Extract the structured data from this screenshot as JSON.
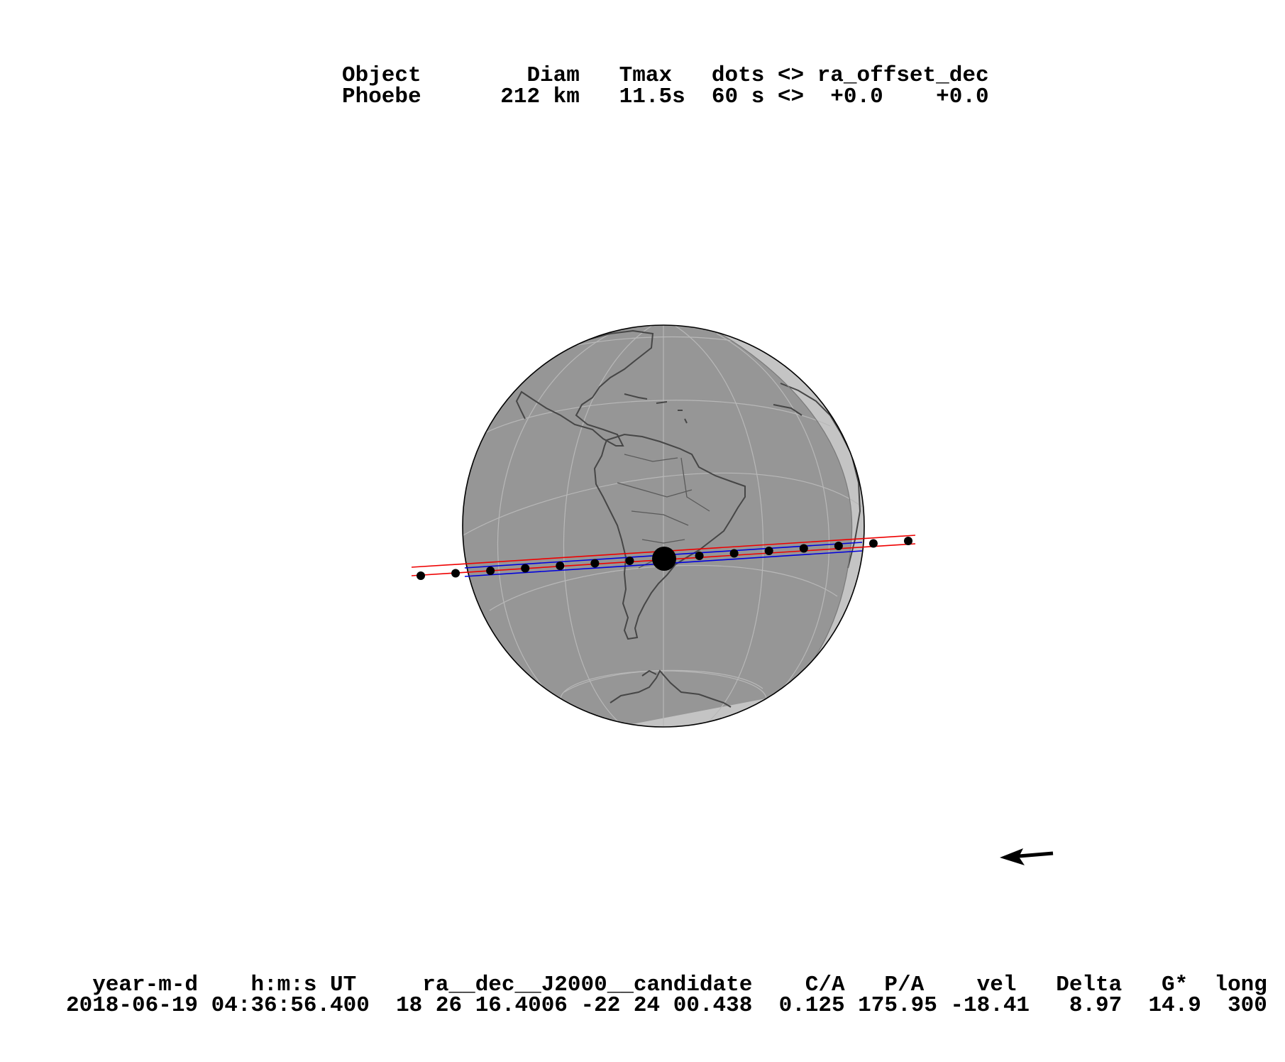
{
  "header": {
    "line1": "Object        Diam   Tmax   dots <> ra_offset_dec",
    "line2": "Phoebe      212 km   11.5s  60 s <>  +0.0    +0.0"
  },
  "footer": {
    "line1": "  year-m-d    h:m:s UT     ra__dec__J2000__candidate    C/A   P/A    vel   Delta   G*  long",
    "line2": "2018-06-19 04:36:56.400  18 26 16.4006 -22 24 00.438  0.125 175.95 -18.41   8.97  14.9  300"
  },
  "map": {
    "projection": "orthographic",
    "center_longitude": -60,
    "dot_interval_s": 60,
    "night_color": "#969696",
    "day_color": "#c4c4c4",
    "coast_color": "#464646",
    "shadow_path_color": "#0000dd",
    "error_path_color": "#ee0000",
    "motion_arrow": "arrow-left-icon"
  }
}
